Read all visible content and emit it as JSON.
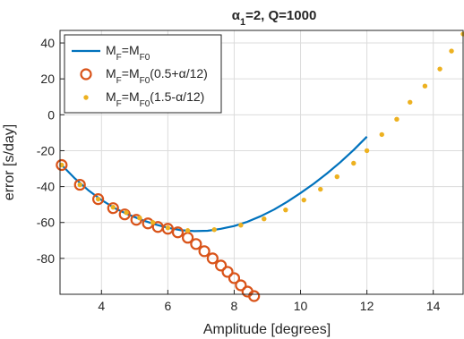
{
  "chart_data": {
    "type": "line",
    "title": {
      "parts": [
        {
          "text": "α",
          "sub": false
        },
        {
          "text": "1",
          "sub": true
        },
        {
          "text": "=2, Q=1000",
          "sub": false
        }
      ]
    },
    "xlabel": "Amplitude [degrees]",
    "ylabel": "error [s/day]",
    "xlim": [
      2.75,
      14.9
    ],
    "ylim": [
      -100,
      47
    ],
    "xticks": [
      4,
      6,
      8,
      10,
      12,
      14
    ],
    "yticks": [
      -80,
      -60,
      -40,
      -20,
      0,
      20,
      40
    ],
    "grid": true,
    "legend_position": "top-left",
    "series": [
      {
        "name_parts": [
          {
            "text": "M",
            "sub": false
          },
          {
            "text": "F",
            "sub": true
          },
          {
            "text": "=M",
            "sub": false
          },
          {
            "text": "F0",
            "sub": true
          }
        ],
        "style": "line",
        "color": "#0072BD",
        "x": [
          2.8,
          3.2,
          3.6,
          4.0,
          4.4,
          4.8,
          5.2,
          5.6,
          6.0,
          6.4,
          6.8,
          7.2,
          7.6,
          8.0,
          8.4,
          8.8,
          9.2,
          9.6,
          10.0,
          10.4,
          10.8,
          11.2,
          11.6,
          12.0
        ],
        "y": [
          -28,
          -35.5,
          -42,
          -47.5,
          -52,
          -55.5,
          -58.5,
          -61,
          -63,
          -64.3,
          -64.8,
          -64.6,
          -63.5,
          -62,
          -59.6,
          -56.5,
          -52.8,
          -48.5,
          -43.6,
          -38.4,
          -32.7,
          -26.4,
          -19.6,
          -12.2
        ]
      },
      {
        "name_parts": [
          {
            "text": "M",
            "sub": false
          },
          {
            "text": "F",
            "sub": true
          },
          {
            "text": "=M",
            "sub": false
          },
          {
            "text": "F0",
            "sub": true
          },
          {
            "text": "(0.5+α/12)",
            "sub": false
          }
        ],
        "style": "circle",
        "color": "#D95319",
        "x": [
          2.8,
          3.35,
          3.9,
          4.35,
          4.7,
          5.05,
          5.4,
          5.7,
          6.0,
          6.3,
          6.6,
          6.85,
          7.1,
          7.35,
          7.6,
          7.8,
          8.0,
          8.2,
          8.4,
          8.6
        ],
        "y": [
          -28,
          -39,
          -47,
          -52,
          -55.5,
          -58.5,
          -60.5,
          -62.5,
          -63.5,
          -65.5,
          -68.5,
          -72,
          -76,
          -80,
          -84,
          -87.5,
          -91,
          -95,
          -98.5,
          -101
        ]
      },
      {
        "name_parts": [
          {
            "text": "M",
            "sub": false
          },
          {
            "text": "F",
            "sub": true
          },
          {
            "text": "=M",
            "sub": false
          },
          {
            "text": "F0",
            "sub": true
          },
          {
            "text": "(1.5-α/12)",
            "sub": false
          }
        ],
        "style": "dot",
        "color": "#EDB120",
        "x": [
          2.8,
          3.35,
          3.9,
          4.35,
          4.75,
          5.15,
          5.55,
          6.0,
          6.6,
          7.4,
          8.2,
          8.9,
          9.55,
          10.1,
          10.6,
          11.1,
          11.6,
          12.0,
          12.45,
          12.9,
          13.3,
          13.75,
          14.2,
          14.55,
          14.9
        ],
        "y": [
          -28,
          -39,
          -47,
          -51.5,
          -54.5,
          -57.5,
          -60,
          -63,
          -64.5,
          -64,
          -61.5,
          -58,
          -53,
          -47.5,
          -41.5,
          -34.5,
          -27,
          -20,
          -11,
          -2.5,
          7,
          16,
          25.5,
          35.5,
          45
        ]
      }
    ]
  }
}
